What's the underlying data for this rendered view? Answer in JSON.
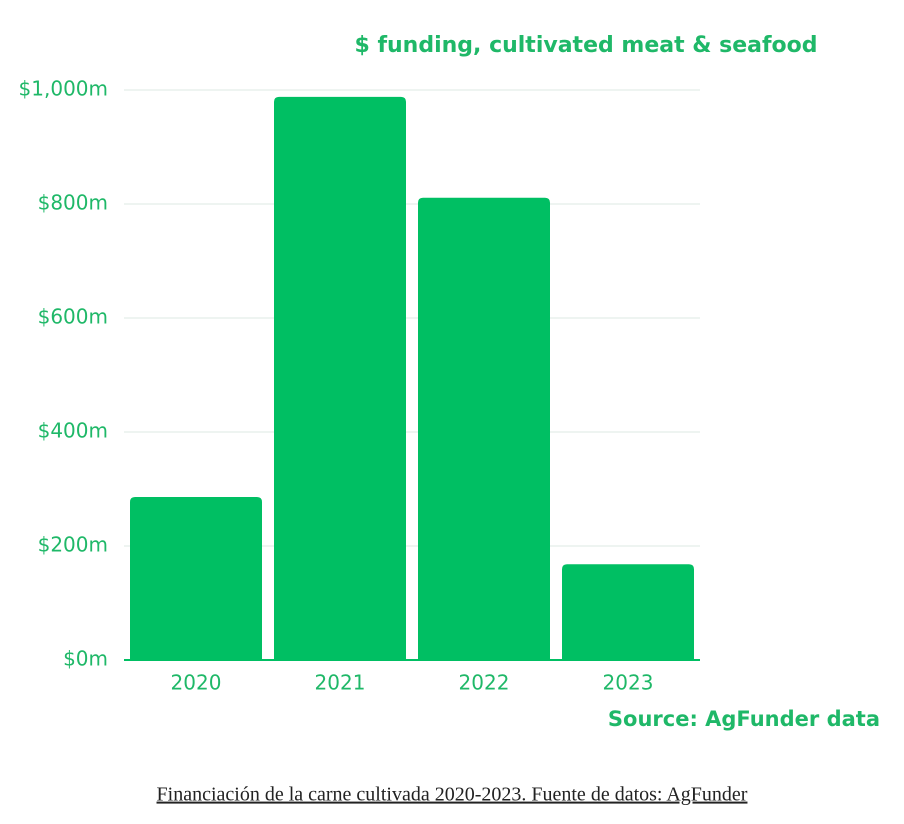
{
  "chart_data": {
    "type": "bar",
    "title": "$ funding, cultivated meat & seafood",
    "categories": [
      "2020",
      "2021",
      "2022",
      "2023"
    ],
    "values": [
      286,
      988,
      811,
      168
    ],
    "color": "#00bf63",
    "ylim": [
      0,
      1000
    ],
    "yticks": [
      {
        "value": 0,
        "label": "$0m"
      },
      {
        "value": 200,
        "label": "$200m"
      },
      {
        "value": 400,
        "label": "$400m"
      },
      {
        "value": 600,
        "label": "$600m"
      },
      {
        "value": 800,
        "label": "$800m"
      },
      {
        "value": 1000,
        "label": "$1,000m"
      }
    ],
    "grid": true,
    "source": "Source: AgFunder data",
    "caption": "Financiación de la carne cultivada 2020-2023. Fuente de datos: AgFunder"
  }
}
